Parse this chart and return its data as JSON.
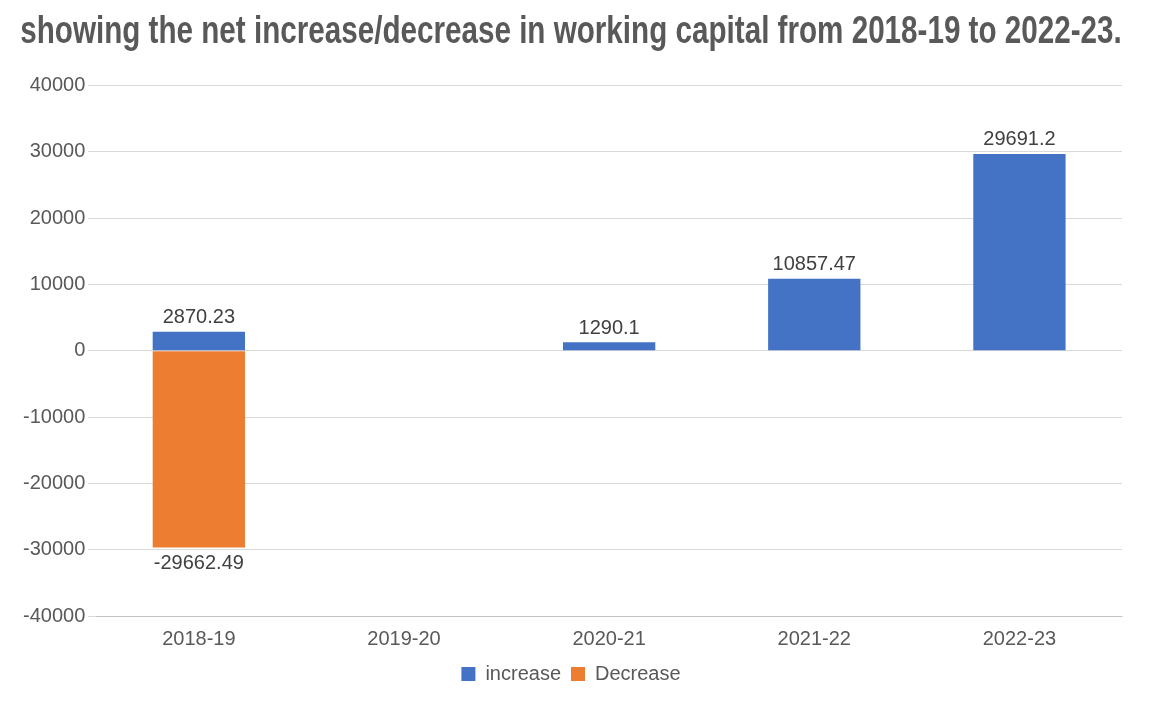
{
  "chart_data": {
    "type": "bar",
    "title": "showing the net increase/decrease in working capital from 2018-19 to 2022-23.",
    "categories": [
      "2018-19",
      "2019-20",
      "2020-21",
      "2021-22",
      "2022-23"
    ],
    "series": [
      {
        "name": "increase",
        "color": "#4472c4",
        "values": [
          2870.23,
          null,
          1290.1,
          10857.47,
          29691.2
        ]
      },
      {
        "name": "Decrease",
        "color": "#ed7d31",
        "values": [
          -29662.49,
          null,
          null,
          null,
          null
        ]
      }
    ],
    "ylim": [
      -40000,
      40000
    ],
    "yticks": [
      -40000,
      -30000,
      -20000,
      -10000,
      0,
      10000,
      20000,
      30000,
      40000
    ],
    "grid": "y",
    "legend": "bottom",
    "data_labels": true
  }
}
